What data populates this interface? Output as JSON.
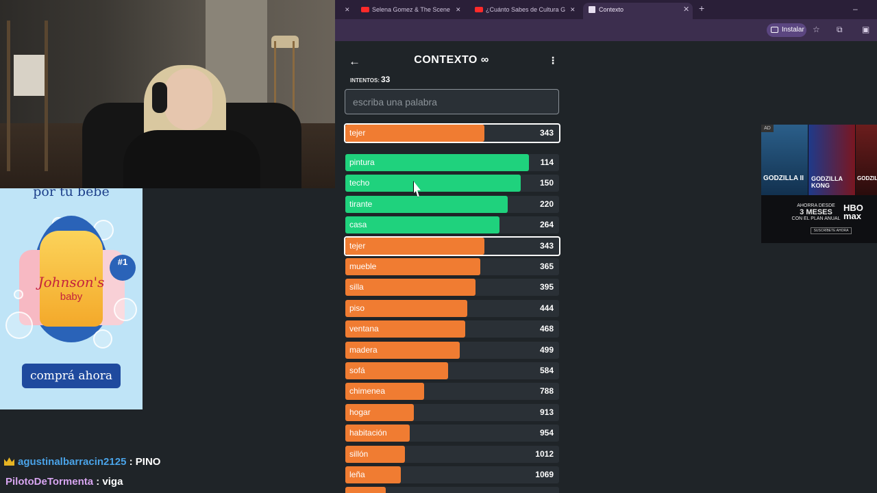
{
  "browser": {
    "tabs": [
      {
        "label": "Selena Gomez & The Scene - L",
        "icon": "youtube-icon"
      },
      {
        "label": "¿Cuánto Sabes de Cultura Gene",
        "icon": "youtube-icon"
      },
      {
        "label": "Contexto",
        "icon": "page-icon",
        "active": true
      }
    ],
    "install_label": "Instalar"
  },
  "game": {
    "title": "CONTEXTO ∞",
    "attempts_label": "INTENTOS:",
    "attempts": "33",
    "input_placeholder": "escriba una palabra",
    "last_guess": {
      "word": "tejer",
      "score": "343",
      "fill": 0.65,
      "color": "#f07c32"
    },
    "guesses": [
      {
        "word": "pintura",
        "score": "114",
        "fill": 0.86,
        "color": "#1fd27d"
      },
      {
        "word": "techo",
        "score": "150",
        "fill": 0.82,
        "color": "#1fd27d"
      },
      {
        "word": "tirante",
        "score": "220",
        "fill": 0.76,
        "color": "#1fd27d"
      },
      {
        "word": "casa",
        "score": "264",
        "fill": 0.72,
        "color": "#1fd27d"
      },
      {
        "word": "tejer",
        "score": "343",
        "fill": 0.65,
        "color": "#f07c32",
        "highlight": true
      },
      {
        "word": "mueble",
        "score": "365",
        "fill": 0.63,
        "color": "#f07c32"
      },
      {
        "word": "silla",
        "score": "395",
        "fill": 0.61,
        "color": "#f07c32"
      },
      {
        "word": "piso",
        "score": "444",
        "fill": 0.57,
        "color": "#f07c32"
      },
      {
        "word": "ventana",
        "score": "468",
        "fill": 0.56,
        "color": "#f07c32"
      },
      {
        "word": "madera",
        "score": "499",
        "fill": 0.535,
        "color": "#f07c32"
      },
      {
        "word": "sofá",
        "score": "584",
        "fill": 0.48,
        "color": "#f07c32"
      },
      {
        "word": "chimenea",
        "score": "788",
        "fill": 0.37,
        "color": "#f07c32"
      },
      {
        "word": "hogar",
        "score": "913",
        "fill": 0.32,
        "color": "#f07c32"
      },
      {
        "word": "habitación",
        "score": "954",
        "fill": 0.3,
        "color": "#f07c32"
      },
      {
        "word": "sillón",
        "score": "1012",
        "fill": 0.28,
        "color": "#f07c32"
      },
      {
        "word": "leña",
        "score": "1069",
        "fill": 0.26,
        "color": "#f07c32"
      },
      {
        "word": "",
        "score": "",
        "fill": 0.19,
        "color": "#f07c32"
      }
    ]
  },
  "ad_left": {
    "headline": "por tu bebé",
    "brand": "Johnson's",
    "brand_sub": "baby",
    "badge": "#1",
    "cta": "comprá ahora"
  },
  "ad_right": {
    "ad_tag": "AD",
    "poster1": "GODZILLA II",
    "poster2": "GODZILLA KONG",
    "poster3": "GODZILLA",
    "promo_top": "AHORRA DESDE",
    "promo_big": "3 MESES",
    "promo_bottom": "CON EL PLAN ANUAL",
    "hbo": "HBO max",
    "subscribe": "SUSCRÍBETE AHORA"
  },
  "chat": [
    {
      "user": "agustinalbarracin2125",
      "message": "PINO",
      "badge": "crown-icon"
    },
    {
      "user": "PilotoDeTormenta",
      "message": "viga"
    }
  ]
}
